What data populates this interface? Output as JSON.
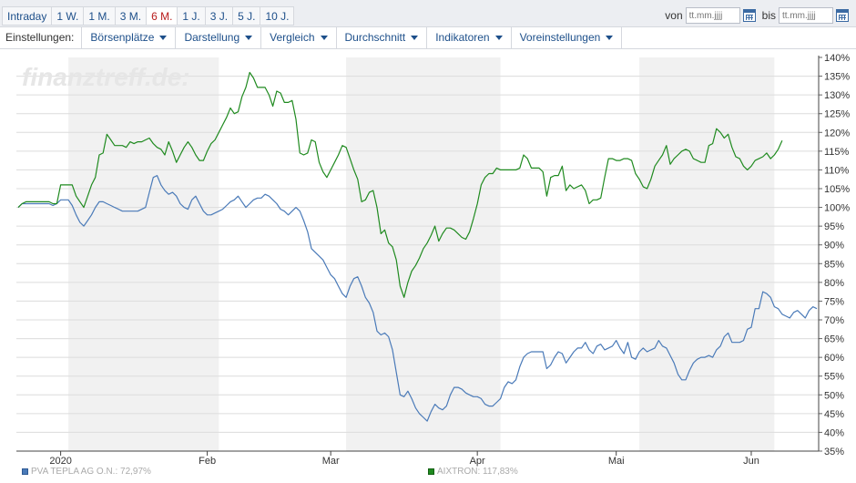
{
  "toolbar": {
    "tabs": [
      "Intraday",
      "1 W.",
      "1 M.",
      "3 M.",
      "6 M.",
      "1 J.",
      "3 J.",
      "5 J.",
      "10 J."
    ],
    "active_tab": "6 M.",
    "from_label": "von",
    "to_label": "bis",
    "date_placeholder": "tt.mm.jjjj"
  },
  "settings": {
    "label": "Einstellungen:",
    "menus": [
      "Börsenplätze",
      "Darstellung",
      "Vergleich",
      "Durchschnitt",
      "Indikatoren",
      "Voreinstellungen"
    ]
  },
  "watermark": "finanztreff.de:",
  "colors": {
    "series1": "#4a7ab8",
    "series2": "#1f8a1f",
    "shade": "#f1f1f1",
    "grid": "#dcdcdc"
  },
  "chart_data": {
    "type": "line",
    "ylim": [
      35,
      140
    ],
    "y_ticks": [
      "140%",
      "135%",
      "130%",
      "125%",
      "120%",
      "115%",
      "110%",
      "105%",
      "100%",
      "95%",
      "90%",
      "85%",
      "80%",
      "75%",
      "70%",
      "65%",
      "60%",
      "55%",
      "50%",
      "45%",
      "40%",
      "35%"
    ],
    "x_labels": [
      "2020",
      "Feb",
      "Mar",
      "Apr",
      "Mai",
      "Jun"
    ],
    "x_label_index": [
      11,
      49,
      81,
      119,
      155,
      190
    ],
    "shaded_month_ranges": [
      [
        13,
        52
      ],
      [
        85,
        125
      ],
      [
        161,
        196
      ]
    ],
    "series": [
      {
        "name": "PVA TEPLA AG O.N.",
        "last_label": "PVA TEPLA AG O.N.: 72,97%",
        "values": [
          100,
          101,
          101,
          101,
          101,
          101,
          101,
          101,
          101,
          100.5,
          101,
          102,
          102,
          102,
          100.5,
          98,
          96,
          95,
          96.5,
          98,
          100,
          101.5,
          101.5,
          101,
          100.5,
          100,
          99.5,
          99,
          99,
          99,
          99,
          99,
          99.5,
          100,
          104,
          108,
          108.5,
          106,
          104.5,
          103.5,
          104,
          103,
          101,
          100,
          99.5,
          102,
          103,
          101,
          99,
          98,
          98,
          98.5,
          99,
          99.5,
          100.5,
          101.5,
          102,
          103,
          101.5,
          100,
          101,
          102,
          102.5,
          102.5,
          103.5,
          103,
          102,
          101,
          99.5,
          99,
          98,
          99,
          100,
          99,
          96.5,
          93.5,
          89,
          88,
          87,
          86,
          84,
          82,
          81,
          79,
          77,
          76,
          79,
          81,
          81.5,
          79,
          76,
          74.5,
          72,
          67,
          66,
          66.5,
          65.5,
          62,
          56,
          50,
          49.5,
          51,
          49,
          46.5,
          45,
          44,
          43,
          45.5,
          47.5,
          46.5,
          46,
          47,
          50,
          52,
          52,
          51.5,
          50.5,
          50,
          49.5,
          49.5,
          49,
          47.5,
          47,
          47,
          48,
          49,
          52,
          53.5,
          53,
          54,
          57.5,
          60,
          61,
          61.5,
          61.5,
          61.5,
          61.5,
          57,
          58,
          60,
          61.5,
          61,
          58.5,
          60,
          61.5,
          62.5,
          62.5,
          64,
          62,
          61,
          63,
          63.5,
          62,
          62.5,
          63,
          64.5,
          62.5,
          61,
          64,
          60,
          59.5,
          61.5,
          62.5,
          61.5,
          62,
          62.5,
          64.5,
          63,
          62.5,
          60.5,
          58.5,
          55.5,
          54,
          54,
          56.5,
          58.5,
          59.5,
          60,
          60,
          60.5,
          60,
          62,
          63,
          65.5,
          66.5,
          64,
          64,
          64,
          64.5,
          67.5,
          68,
          73,
          73,
          77.5,
          77,
          76,
          73.5,
          73,
          71.5,
          71,
          70.5,
          72,
          72.5,
          71.5,
          70.5,
          72.5,
          73.5,
          73
        ]
      },
      {
        "name": "AIXTRON",
        "last_label": "AIXTRON: 117,83%",
        "values": [
          100,
          101,
          101.5,
          101.5,
          101.5,
          101.5,
          101.5,
          101.5,
          101.5,
          101,
          101,
          106,
          106,
          106,
          106,
          103,
          101.5,
          100,
          103,
          106,
          108,
          114,
          114.5,
          119.5,
          118,
          116.5,
          116.5,
          116.5,
          116,
          117.5,
          117,
          117.5,
          117.5,
          118,
          118.5,
          117,
          116,
          115.5,
          114,
          117.5,
          115,
          112,
          114,
          116,
          117.5,
          116,
          114,
          112.5,
          112.5,
          115,
          117,
          118,
          120,
          122,
          124,
          126.5,
          125,
          125.5,
          129.5,
          132,
          136,
          134.5,
          132,
          132,
          132,
          130,
          127,
          131,
          130.5,
          128,
          128,
          128.5,
          123.5,
          114.5,
          114,
          114.5,
          118,
          117.5,
          112,
          109.5,
          108,
          110,
          112,
          114,
          116.5,
          116,
          113,
          110,
          107.5,
          101.5,
          102,
          104,
          104.5,
          100,
          93,
          94,
          90.5,
          89.5,
          86,
          79,
          76,
          80,
          83,
          84.5,
          86.5,
          89,
          90.5,
          92.5,
          95,
          91,
          93,
          94.5,
          94.5,
          94,
          93,
          92,
          91.5,
          93.5,
          97,
          101,
          106,
          108,
          109,
          109,
          110.5,
          110,
          110,
          110,
          110,
          110,
          110.5,
          114,
          113,
          110.5,
          110.5,
          110.5,
          109.5,
          103,
          108,
          108.5,
          108.5,
          111,
          104.5,
          106,
          105,
          105.5,
          106,
          104.5,
          101,
          102,
          102,
          102.5,
          108,
          113,
          113,
          112.5,
          112.5,
          113,
          113,
          112.5,
          109,
          107.5,
          105.5,
          105,
          107.5,
          111,
          112.5,
          114,
          116.5,
          111.5,
          113,
          114,
          115,
          115.5,
          115,
          113,
          112.5,
          112,
          112,
          116.5,
          117,
          121,
          120,
          118.5,
          119.5,
          116,
          113.5,
          113,
          111,
          110,
          111,
          112.5,
          113,
          113.5,
          114.5,
          113,
          114,
          115.5,
          117.8
        ]
      }
    ]
  }
}
